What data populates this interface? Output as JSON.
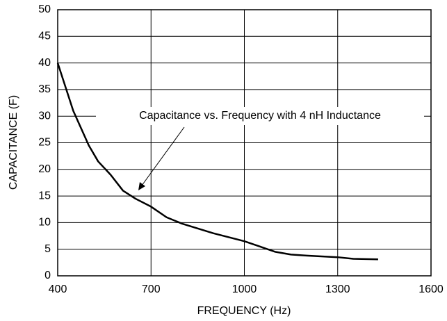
{
  "chart_data": {
    "type": "line",
    "annotation": "Capacitance vs. Frequency with 4 nH Inductance",
    "xlabel": "FREQUENCY (Hz)",
    "ylabel": "CAPACITANCE (F)",
    "x": [
      400,
      450,
      500,
      530,
      570,
      610,
      650,
      700,
      750,
      800,
      900,
      1000,
      1050,
      1100,
      1150,
      1200,
      1300,
      1350,
      1430
    ],
    "series": [
      {
        "color": "#000000",
        "values": [
          40,
          31,
          24.5,
          21.5,
          19,
          16,
          14.5,
          13,
          11,
          9.8,
          8,
          6.5,
          5.5,
          4.5,
          4,
          3.8,
          3.5,
          3.2,
          3.1
        ]
      }
    ],
    "xlim": [
      400,
      1600
    ],
    "xticks": [
      400,
      700,
      1000,
      1300,
      1600
    ],
    "ylim": [
      0,
      50
    ],
    "yticks": [
      0,
      5,
      10,
      15,
      20,
      25,
      30,
      35,
      40,
      45,
      50
    ],
    "grid": true
  }
}
